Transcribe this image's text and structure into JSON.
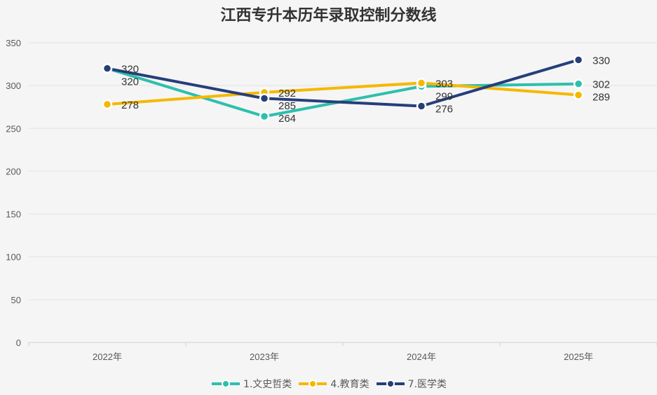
{
  "chart_data": {
    "type": "line",
    "title": "江西专升本历年录取控制分数线",
    "categories": [
      "2022年",
      "2023年",
      "2024年",
      "2025年"
    ],
    "ylim": [
      0,
      350
    ],
    "yticks": [
      0,
      50,
      100,
      150,
      200,
      250,
      300,
      350
    ],
    "grid": true,
    "legend_position": "bottom",
    "series": [
      {
        "name": "1.文史哲类",
        "color": "#2ebfad",
        "values": [
          320,
          264,
          299,
          302
        ]
      },
      {
        "name": "4.教育类",
        "color": "#f5b800",
        "values": [
          278,
          292,
          303,
          289
        ]
      },
      {
        "name": "7.医学类",
        "color": "#263f7a",
        "values": [
          320,
          285,
          276,
          330
        ]
      }
    ]
  }
}
